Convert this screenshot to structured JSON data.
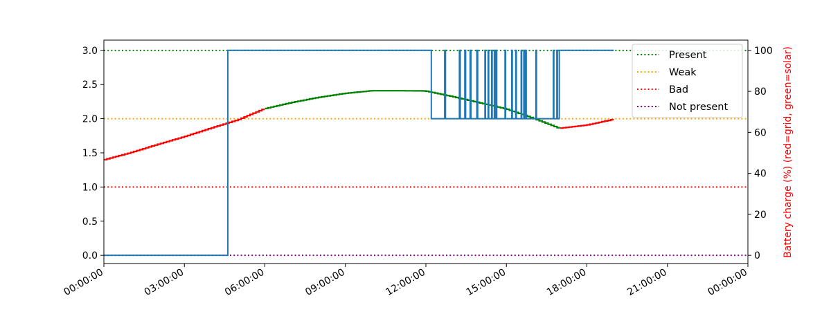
{
  "chart_data": {
    "type": "line",
    "title": "",
    "xlabel": "",
    "ylabel": "",
    "y2label": "Battery charge (%) (red=grid, green=solar)",
    "x_ticks": [
      "00:00:00",
      "03:00:00",
      "06:00:00",
      "09:00:00",
      "12:00:00",
      "15:00:00",
      "18:00:00",
      "21:00:00",
      "00:00:00"
    ],
    "xlim_hours": [
      0,
      24
    ],
    "ylim": [
      -0.12,
      3.15
    ],
    "y_ticks": [
      "0.0",
      "0.5",
      "1.0",
      "1.5",
      "2.0",
      "2.5",
      "3.0"
    ],
    "y2lim": [
      -4,
      105
    ],
    "y2_ticks": [
      "0",
      "20",
      "40",
      "60",
      "80",
      "100"
    ],
    "grid": false,
    "legend_position": "upper-right",
    "thresholds": [
      {
        "name": "Present",
        "value": 3,
        "color": "#008000"
      },
      {
        "name": "Weak",
        "value": 2,
        "color": "#ffa500"
      },
      {
        "name": "Bad",
        "value": 1,
        "color": "#ff0000"
      },
      {
        "name": "Not present",
        "value": 0,
        "color": "#800080"
      }
    ],
    "signal_series": {
      "color": "#1f77b4",
      "segments": [
        [
          0,
          0
        ],
        [
          4.62,
          0
        ],
        [
          4.62,
          3
        ],
        [
          12.2,
          3
        ],
        [
          12.2,
          2
        ],
        [
          12.7,
          2
        ],
        [
          12.7,
          3
        ],
        [
          12.73,
          3
        ],
        [
          12.73,
          2
        ],
        [
          13.25,
          2
        ],
        [
          13.25,
          3
        ],
        [
          13.28,
          3
        ],
        [
          13.28,
          2
        ],
        [
          13.45,
          2
        ],
        [
          13.45,
          3
        ],
        [
          13.48,
          3
        ],
        [
          13.48,
          2
        ],
        [
          13.65,
          2
        ],
        [
          13.65,
          3
        ],
        [
          13.68,
          3
        ],
        [
          13.68,
          2
        ],
        [
          13.9,
          2
        ],
        [
          13.9,
          3
        ],
        [
          13.93,
          3
        ],
        [
          13.93,
          2
        ],
        [
          14.2,
          2
        ],
        [
          14.2,
          3
        ],
        [
          14.22,
          3
        ],
        [
          14.22,
          2
        ],
        [
          14.32,
          2
        ],
        [
          14.32,
          3
        ],
        [
          14.34,
          3
        ],
        [
          14.34,
          2
        ],
        [
          14.45,
          2
        ],
        [
          14.45,
          3
        ],
        [
          14.47,
          3
        ],
        [
          14.47,
          2
        ],
        [
          14.55,
          2
        ],
        [
          14.55,
          3
        ],
        [
          14.57,
          3
        ],
        [
          14.57,
          2
        ],
        [
          14.62,
          2
        ],
        [
          14.62,
          3
        ],
        [
          14.64,
          3
        ],
        [
          14.64,
          2
        ],
        [
          14.95,
          2
        ],
        [
          14.95,
          3
        ],
        [
          14.97,
          3
        ],
        [
          14.97,
          2
        ],
        [
          15.2,
          2
        ],
        [
          15.2,
          3
        ],
        [
          15.22,
          3
        ],
        [
          15.22,
          2
        ],
        [
          15.35,
          2
        ],
        [
          15.35,
          3
        ],
        [
          15.37,
          3
        ],
        [
          15.37,
          2
        ],
        [
          15.55,
          2
        ],
        [
          15.55,
          3
        ],
        [
          15.57,
          3
        ],
        [
          15.57,
          2
        ],
        [
          15.65,
          2
        ],
        [
          15.65,
          3
        ],
        [
          15.67,
          3
        ],
        [
          15.67,
          2
        ],
        [
          15.72,
          2
        ],
        [
          15.72,
          3
        ],
        [
          15.74,
          3
        ],
        [
          15.74,
          2
        ],
        [
          16.1,
          2
        ],
        [
          16.1,
          3
        ],
        [
          16.12,
          3
        ],
        [
          16.12,
          2
        ],
        [
          16.75,
          2
        ],
        [
          16.75,
          3
        ],
        [
          16.77,
          3
        ],
        [
          16.77,
          2
        ],
        [
          16.88,
          2
        ],
        [
          16.88,
          3
        ],
        [
          16.9,
          3
        ],
        [
          16.9,
          2
        ],
        [
          16.97,
          2
        ],
        [
          16.97,
          3
        ],
        [
          19.0,
          3
        ]
      ]
    },
    "battery_series": [
      {
        "name": "grid",
        "color": "#ff0000",
        "points": [
          [
            0,
            46.5
          ],
          [
            1.0,
            50
          ],
          [
            2.0,
            54
          ],
          [
            3.0,
            57.8
          ],
          [
            4.0,
            62
          ],
          [
            5.0,
            66
          ],
          [
            6.0,
            71.5
          ]
        ]
      },
      {
        "name": "solar",
        "color": "#008000",
        "points": [
          [
            6.0,
            71.5
          ],
          [
            7.0,
            74.5
          ],
          [
            8.0,
            77
          ],
          [
            9.0,
            79
          ],
          [
            10.0,
            80.3
          ],
          [
            11.0,
            80.3
          ],
          [
            12.0,
            80.2
          ],
          [
            13.0,
            77.5
          ],
          [
            14.0,
            74.5
          ],
          [
            15.0,
            71.5
          ],
          [
            16.0,
            67
          ],
          [
            17.0,
            62
          ]
        ]
      },
      {
        "name": "grid",
        "color": "#ff0000",
        "points": [
          [
            17.0,
            62
          ],
          [
            18.0,
            63.5
          ],
          [
            19.0,
            66.3
          ]
        ]
      }
    ]
  }
}
